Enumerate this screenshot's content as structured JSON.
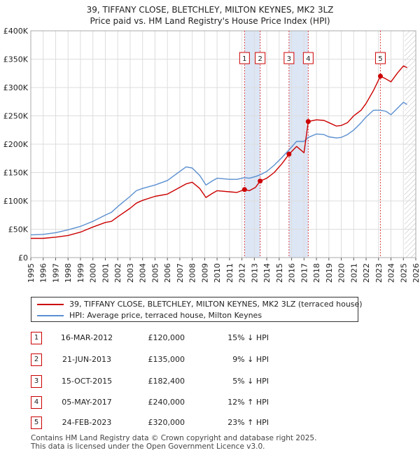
{
  "header": {
    "title_line1": "39, TIFFANY CLOSE, BLETCHLEY, MILTON KEYNES, MK2 3LZ",
    "title_line2": "Price paid vs. HM Land Registry's House Price Index (HPI)"
  },
  "chart_data": {
    "type": "line",
    "title": "39, TIFFANY CLOSE, BLETCHLEY, MILTON KEYNES, MK2 3LZ — Price paid vs. HM Land Registry's House Price Index (HPI)",
    "xlim": [
      1995,
      2026
    ],
    "ylim": [
      0,
      400000
    ],
    "yticks": [
      0,
      50000,
      100000,
      150000,
      200000,
      250000,
      300000,
      350000,
      400000
    ],
    "ytick_labels": [
      "£0",
      "£50K",
      "£100K",
      "£150K",
      "£200K",
      "£250K",
      "£300K",
      "£350K",
      "£400K"
    ],
    "xticks": [
      1995,
      1996,
      1997,
      1998,
      1999,
      2000,
      2001,
      2002,
      2003,
      2004,
      2005,
      2006,
      2007,
      2008,
      2009,
      2010,
      2011,
      2012,
      2013,
      2014,
      2015,
      2016,
      2017,
      2018,
      2019,
      2020,
      2021,
      2022,
      2023,
      2024,
      2025,
      2026
    ],
    "grid": true,
    "colors": {
      "property": "#cc0000",
      "hpi": "#5b8fd0",
      "band": "#dce6f5",
      "marker_border": "#cc0000"
    },
    "forecast_start": 2025.1,
    "series": [
      {
        "name": "39, TIFFANY CLOSE, BLETCHLEY, MILTON KEYNES, MK2 3LZ (terraced house)",
        "points": [
          [
            1995.0,
            34000
          ],
          [
            1996.0,
            34000
          ],
          [
            1997.0,
            36000
          ],
          [
            1998.0,
            39000
          ],
          [
            1999.0,
            45000
          ],
          [
            2000.0,
            54000
          ],
          [
            2001.0,
            62000
          ],
          [
            2001.5,
            64000
          ],
          [
            2002.0,
            72000
          ],
          [
            2003.0,
            87000
          ],
          [
            2003.5,
            96000
          ],
          [
            2004.0,
            101000
          ],
          [
            2005.0,
            108000
          ],
          [
            2006.0,
            112000
          ],
          [
            2007.0,
            124000
          ],
          [
            2007.5,
            130000
          ],
          [
            2008.0,
            133000
          ],
          [
            2008.6,
            122000
          ],
          [
            2009.1,
            106000
          ],
          [
            2009.6,
            113000
          ],
          [
            2010.0,
            118000
          ],
          [
            2011.0,
            116000
          ],
          [
            2011.6,
            115000
          ],
          [
            2012.21,
            120000
          ],
          [
            2012.6,
            118000
          ],
          [
            2013.1,
            124000
          ],
          [
            2013.47,
            135000
          ],
          [
            2014.0,
            140000
          ],
          [
            2014.6,
            150000
          ],
          [
            2015.2,
            165000
          ],
          [
            2015.79,
            182400
          ],
          [
            2016.4,
            196000
          ],
          [
            2017.0,
            185000
          ],
          [
            2017.34,
            240000
          ],
          [
            2018.0,
            243000
          ],
          [
            2018.6,
            242000
          ],
          [
            2019.0,
            238000
          ],
          [
            2019.6,
            232000
          ],
          [
            2020.0,
            233000
          ],
          [
            2020.5,
            238000
          ],
          [
            2021.0,
            250000
          ],
          [
            2021.6,
            260000
          ],
          [
            2022.0,
            272000
          ],
          [
            2022.6,
            295000
          ],
          [
            2023.15,
            320000
          ],
          [
            2023.6,
            315000
          ],
          [
            2024.0,
            310000
          ],
          [
            2024.5,
            325000
          ],
          [
            2025.0,
            338000
          ],
          [
            2025.3,
            335000
          ]
        ]
      },
      {
        "name": "HPI: Average price, terraced house, Milton Keynes",
        "points": [
          [
            1995.0,
            40000
          ],
          [
            1996.0,
            41000
          ],
          [
            1997.0,
            44000
          ],
          [
            1998.0,
            49000
          ],
          [
            1999.0,
            55000
          ],
          [
            2000.0,
            64000
          ],
          [
            2001.0,
            75000
          ],
          [
            2001.5,
            80000
          ],
          [
            2002.0,
            90000
          ],
          [
            2003.0,
            108000
          ],
          [
            2003.5,
            118000
          ],
          [
            2004.0,
            122000
          ],
          [
            2005.0,
            128000
          ],
          [
            2006.0,
            136000
          ],
          [
            2007.0,
            152000
          ],
          [
            2007.5,
            160000
          ],
          [
            2008.0,
            158000
          ],
          [
            2008.6,
            145000
          ],
          [
            2009.1,
            128000
          ],
          [
            2009.6,
            135000
          ],
          [
            2010.0,
            140000
          ],
          [
            2011.0,
            138000
          ],
          [
            2011.6,
            138000
          ],
          [
            2012.21,
            141000
          ],
          [
            2012.6,
            140000
          ],
          [
            2013.1,
            143000
          ],
          [
            2013.47,
            146000
          ],
          [
            2014.0,
            152000
          ],
          [
            2014.6,
            163000
          ],
          [
            2015.2,
            176000
          ],
          [
            2015.79,
            190000
          ],
          [
            2016.4,
            205000
          ],
          [
            2017.0,
            205000
          ],
          [
            2017.34,
            212000
          ],
          [
            2018.0,
            218000
          ],
          [
            2018.6,
            217000
          ],
          [
            2019.0,
            213000
          ],
          [
            2019.6,
            211000
          ],
          [
            2020.0,
            212000
          ],
          [
            2020.5,
            217000
          ],
          [
            2021.0,
            225000
          ],
          [
            2021.6,
            238000
          ],
          [
            2022.0,
            248000
          ],
          [
            2022.6,
            260000
          ],
          [
            2023.15,
            260000
          ],
          [
            2023.6,
            258000
          ],
          [
            2024.0,
            252000
          ],
          [
            2024.5,
            263000
          ],
          [
            2025.0,
            274000
          ],
          [
            2025.3,
            270000
          ]
        ]
      }
    ],
    "bands": [
      [
        2012.21,
        2013.47
      ],
      [
        2015.79,
        2017.34
      ]
    ],
    "sales": [
      {
        "num": "1",
        "x": 2012.21,
        "price": 120000
      },
      {
        "num": "2",
        "x": 2013.47,
        "price": 135000
      },
      {
        "num": "3",
        "x": 2015.79,
        "price": 182400
      },
      {
        "num": "4",
        "x": 2017.34,
        "price": 240000
      },
      {
        "num": "5",
        "x": 2023.15,
        "price": 320000
      }
    ]
  },
  "legend": {
    "property_label": "39, TIFFANY CLOSE, BLETCHLEY, MILTON KEYNES, MK2 3LZ (terraced house)",
    "hpi_label": "HPI: Average price, terraced house, Milton Keynes"
  },
  "transactions": [
    {
      "num": "1",
      "date": "16-MAR-2012",
      "price": "£120,000",
      "hpi": "15% ↓ HPI"
    },
    {
      "num": "2",
      "date": "21-JUN-2013",
      "price": "£135,000",
      "hpi": "9% ↓ HPI"
    },
    {
      "num": "3",
      "date": "15-OCT-2015",
      "price": "£182,400",
      "hpi": "5% ↓ HPI"
    },
    {
      "num": "4",
      "date": "05-MAY-2017",
      "price": "£240,000",
      "hpi": "12% ↑ HPI"
    },
    {
      "num": "5",
      "date": "24-FEB-2023",
      "price": "£320,000",
      "hpi": "23% ↑ HPI"
    }
  ],
  "footer": {
    "line1": "Contains HM Land Registry data © Crown copyright and database right 2025.",
    "line2": "This data is licensed under the Open Government Licence v3.0."
  }
}
